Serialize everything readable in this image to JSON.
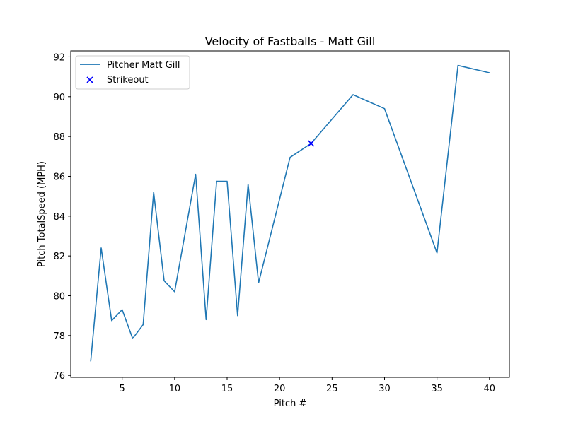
{
  "chart_data": {
    "type": "line",
    "title": "Velocity of Fastballs - Matt Gill",
    "xlabel": "Pitch #",
    "ylabel": "Pitch TotalSpeed (MPH)",
    "xlim": [
      0.1,
      41.9
    ],
    "ylim": [
      75.9,
      92.3
    ],
    "xticks": [
      5,
      10,
      15,
      20,
      25,
      30,
      35,
      40
    ],
    "yticks": [
      76,
      78,
      80,
      82,
      84,
      86,
      88,
      90,
      92
    ],
    "grid": false,
    "legend_position": "top-left",
    "series": [
      {
        "name": "Pitcher Matt Gill",
        "kind": "line",
        "color": "#1f77b4",
        "points": [
          [
            2,
            76.7
          ],
          [
            3,
            82.4
          ],
          [
            4,
            78.75
          ],
          [
            5,
            79.3
          ],
          [
            6,
            77.85
          ],
          [
            7,
            78.55
          ],
          [
            8,
            85.2
          ],
          [
            9,
            80.75
          ],
          [
            10,
            80.2
          ],
          [
            12,
            86.1
          ],
          [
            13,
            78.8
          ],
          [
            14,
            85.75
          ],
          [
            15,
            85.75
          ],
          [
            16,
            79.0
          ],
          [
            17,
            85.6
          ],
          [
            18,
            80.65
          ],
          [
            21,
            86.95
          ],
          [
            23,
            87.65
          ],
          [
            27,
            90.1
          ],
          [
            30,
            89.4
          ],
          [
            35,
            82.15
          ],
          [
            37,
            91.57
          ],
          [
            40,
            91.2
          ]
        ]
      },
      {
        "name": "Strikeout",
        "kind": "scatter",
        "marker": "x",
        "color": "#0000ff",
        "points": [
          [
            23,
            87.65
          ]
        ]
      }
    ]
  }
}
